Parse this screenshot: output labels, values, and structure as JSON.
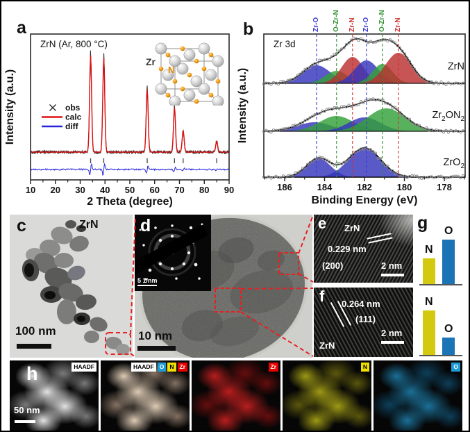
{
  "panel_a": {
    "label": "a",
    "inset": {
      "zr_label": "Zr",
      "n_label": "N"
    }
  },
  "panel_b": {
    "label": "b"
  },
  "panel_c": {
    "label": "c",
    "material": "ZrN",
    "scalebar": "100 nm"
  },
  "panel_d": {
    "label": "d",
    "scalebar": "10 nm",
    "inset_scalebar": "5 1/nm"
  },
  "panel_e": {
    "label": "e",
    "material": "ZrN",
    "d_spacing": "0.229 nm",
    "plane": "(200)",
    "scalebar": "2 nm"
  },
  "panel_f": {
    "label": "f",
    "material": "ZrN",
    "d_spacing": "0.264 nm",
    "plane": "(111)",
    "scalebar": "2 nm"
  },
  "panel_g": {
    "label": "g"
  },
  "panel_h": {
    "label": "h",
    "scalebar": "50 nm",
    "tiles": [
      {
        "name": "haadf",
        "badges": [
          {
            "text": "HAADF",
            "bg": "#ffffff",
            "fg": "#000000"
          }
        ]
      },
      {
        "name": "haadf-overlay",
        "badges": [
          {
            "text": "HAADF",
            "bg": "#ffffff",
            "fg": "#000000"
          },
          {
            "text": "O",
            "bg": "#1e9cd7",
            "fg": "#ffffff"
          },
          {
            "text": "N",
            "bg": "#f0e000",
            "fg": "#000000"
          },
          {
            "text": "Zr",
            "bg": "#e80000",
            "fg": "#ffffff"
          }
        ]
      },
      {
        "name": "zr-map",
        "badges": [
          {
            "text": "Zr",
            "bg": "#e80000",
            "fg": "#ffffff"
          }
        ]
      },
      {
        "name": "n-map",
        "badges": [
          {
            "text": "N",
            "bg": "#f0e000",
            "fg": "#000000"
          }
        ]
      },
      {
        "name": "o-map",
        "badges": [
          {
            "text": "O",
            "bg": "#1e9cd7",
            "fg": "#ffffff"
          }
        ]
      }
    ]
  },
  "chart_data": [
    {
      "panel": "a",
      "type": "line",
      "title": "ZrN (Ar, 800 °C)",
      "xlabel": "2 Theta (degree)",
      "ylabel": "Intensity (a.u.)",
      "xlim": [
        10,
        90
      ],
      "xticks": [
        10,
        20,
        30,
        40,
        50,
        60,
        70,
        80,
        90
      ],
      "legend": [
        {
          "marker": "cross",
          "label": "obs",
          "color": "#2a2a2a"
        },
        {
          "marker": "line",
          "label": "calc",
          "color": "#dd1111"
        },
        {
          "marker": "line",
          "label": "diff",
          "color": "#2424dd"
        }
      ],
      "peaks": [
        {
          "two_theta": 34.2,
          "rel_intensity": 100
        },
        {
          "two_theta": 39.5,
          "rel_intensity": 97
        },
        {
          "two_theta": 57.0,
          "rel_intensity": 64
        },
        {
          "two_theta": 68.0,
          "rel_intensity": 46
        },
        {
          "two_theta": 71.5,
          "rel_intensity": 22
        },
        {
          "two_theta": 85.0,
          "rel_intensity": 11
        }
      ]
    },
    {
      "panel": "b",
      "type": "area",
      "annotation": "Zr 3d",
      "xlabel": "Binding Energy (eV)",
      "ylabel": "Intensity (a.u.)",
      "x_reversed": true,
      "xticks": [
        186,
        184,
        182,
        180,
        178
      ],
      "guides": [
        {
          "label": "Zr-O",
          "binding_energy_eV": 184.4,
          "color": "#3a3ad0"
        },
        {
          "label": "O-Zr-N",
          "binding_energy_eV": 183.4,
          "color": "#2f8f2f"
        },
        {
          "label": "Zr-N",
          "binding_energy_eV": 182.6,
          "color": "#d03030"
        },
        {
          "label": "Zr-O",
          "binding_energy_eV": 181.9,
          "color": "#3a3ad0"
        },
        {
          "label": "O-Zr-N",
          "binding_energy_eV": 181.1,
          "color": "#2f8f2f"
        },
        {
          "label": "Zr-N",
          "binding_energy_eV": 180.3,
          "color": "#d03030"
        }
      ],
      "spectra": [
        {
          "label": "ZrN",
          "label_parts": [
            {
              "t": "ZrN",
              "sub": false
            }
          ],
          "components": [
            {
              "assignment": "Zr-O",
              "center_eV": 184.4,
              "sigma_eV": 0.7,
              "rel_height": 26,
              "color": "#3434bb"
            },
            {
              "assignment": "O-Zr-N",
              "center_eV": 183.4,
              "sigma_eV": 0.55,
              "rel_height": 18,
              "color": "#33a038"
            },
            {
              "assignment": "Zr-N",
              "center_eV": 182.6,
              "sigma_eV": 0.55,
              "rel_height": 38,
              "color": "#bb3030"
            },
            {
              "assignment": "Zr-O",
              "center_eV": 181.9,
              "sigma_eV": 0.6,
              "rel_height": 33,
              "color": "#3434bb"
            },
            {
              "assignment": "O-Zr-N",
              "center_eV": 181.1,
              "sigma_eV": 0.5,
              "rel_height": 28,
              "color": "#33a038"
            },
            {
              "assignment": "Zr-N",
              "center_eV": 180.3,
              "sigma_eV": 0.65,
              "rel_height": 44,
              "color": "#bb3030"
            }
          ]
        },
        {
          "label": "Zr2ON2",
          "label_parts": [
            {
              "t": "Zr",
              "sub": false
            },
            {
              "t": "2",
              "sub": true
            },
            {
              "t": "ON",
              "sub": false
            },
            {
              "t": "2",
              "sub": true
            }
          ],
          "components": [
            {
              "assignment": "Zr-O",
              "center_eV": 184.5,
              "sigma_eV": 0.85,
              "rel_height": 13,
              "color": "#3434bb"
            },
            {
              "assignment": "O-Zr-N",
              "center_eV": 183.4,
              "sigma_eV": 0.85,
              "rel_height": 22,
              "color": "#33a038"
            },
            {
              "assignment": "Zr-O",
              "center_eV": 182.0,
              "sigma_eV": 0.8,
              "rel_height": 20,
              "color": "#3434bb"
            },
            {
              "assignment": "O-Zr-N",
              "center_eV": 180.9,
              "sigma_eV": 0.95,
              "rel_height": 33,
              "color": "#33a038"
            }
          ]
        },
        {
          "label": "ZrO2",
          "label_parts": [
            {
              "t": "ZrO",
              "sub": false
            },
            {
              "t": "2",
              "sub": true
            }
          ],
          "components": [
            {
              "assignment": "Zr-O",
              "center_eV": 184.3,
              "sigma_eV": 0.6,
              "rel_height": 27,
              "color": "#3434bb"
            },
            {
              "assignment": "Zr-O",
              "center_eV": 182.0,
              "sigma_eV": 0.8,
              "rel_height": 42,
              "color": "#3434bb"
            }
          ]
        }
      ]
    },
    {
      "panel": "g",
      "type": "bar",
      "charts": [
        {
          "bars": [
            {
              "element": "N",
              "rel_height": 37,
              "color": "#d3ca10"
            },
            {
              "element": "O",
              "rel_height": 64,
              "color": "#1b74b6"
            }
          ]
        },
        {
          "bars": [
            {
              "element": "N",
              "rel_height": 64,
              "color": "#d3ca10"
            },
            {
              "element": "O",
              "rel_height": 25,
              "color": "#1b74b6"
            }
          ]
        }
      ]
    }
  ]
}
